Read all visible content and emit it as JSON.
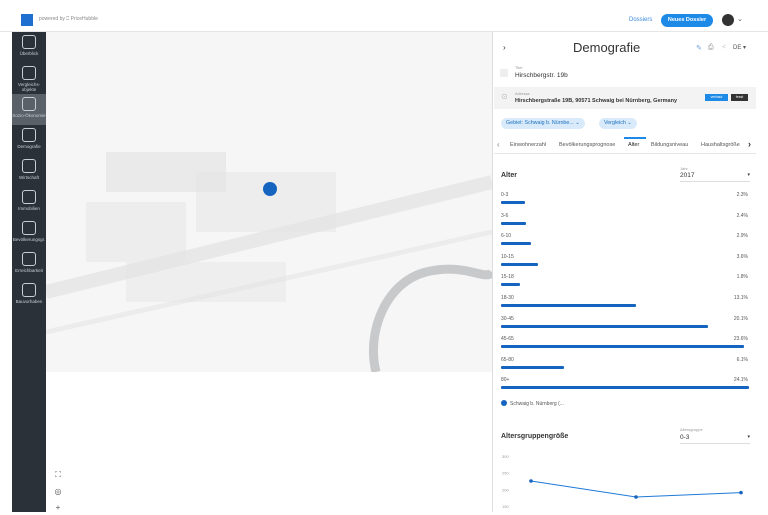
{
  "header": {
    "powered_by": "powered by ⎕ PriceHubble",
    "dossiers": "Dossiers",
    "new_dossier": "Neues Dossier"
  },
  "sidebar": [
    {
      "label": "Überblick"
    },
    {
      "label": "Vergleichs-objekte"
    },
    {
      "label": "Sozio-Ökonomie",
      "active": true
    },
    {
      "label": "Demografie"
    },
    {
      "label": "Wirtschaft"
    },
    {
      "label": "Immobilien"
    },
    {
      "label": "Bevölkerungsgr."
    },
    {
      "label": "Erreichbarkeit"
    },
    {
      "label": "Bauvorhaben"
    }
  ],
  "panel": {
    "title": "Demografie",
    "lang": "DE",
    "title_label": "Titel",
    "title_value": "Hirschbergstr. 19b",
    "address_label": "Adresse",
    "address_value": "Hirschbergstraße 19B, 90571 Schwaig bei Nürnberg, Germany",
    "badge_1": "verbaut",
    "badge_2": "fesst",
    "chip_area": "Gebiet: Schwaig b. Nürnbe...",
    "chip_compare": "Vergleich",
    "tabs": [
      "Einwohnerzahl",
      "Bevölkerungsprognose",
      "Alter",
      "Bildungsniveau",
      "Haushaltsgröße"
    ],
    "active_tab": "Alter",
    "section": "Alter",
    "year_label": "Jahr",
    "year": "2017",
    "legend": "Schwaig b. Nürnberg (...",
    "section2": "Altersgruppengröße",
    "group_label": "Altersgruppe",
    "group_value": "0-3"
  },
  "accent": "#1565c0",
  "chart_data": [
    {
      "type": "bar",
      "title": "Alter",
      "categories": [
        "0-3",
        "3-6",
        "6-10",
        "10-15",
        "15-18",
        "18-30",
        "30-45",
        "45-65",
        "65-80",
        "80+"
      ],
      "values": [
        2.3,
        2.4,
        2.9,
        3.6,
        1.8,
        13.1,
        20.1,
        23.6,
        6.1,
        24.1
      ],
      "value_labels": [
        "2.3%",
        "2.4%",
        "2.9%",
        "3.6%",
        "1.8%",
        "13.1%",
        "20.1%",
        "23.6%",
        "6.1%",
        "24.1%"
      ],
      "series": [
        {
          "name": "Schwaig b. Nürnberg (..."
        }
      ]
    },
    {
      "type": "line",
      "title": "Altersgruppengröße",
      "yticks": [
        "300",
        "250",
        "200",
        "150"
      ],
      "values": [
        225,
        177,
        190
      ]
    }
  ]
}
